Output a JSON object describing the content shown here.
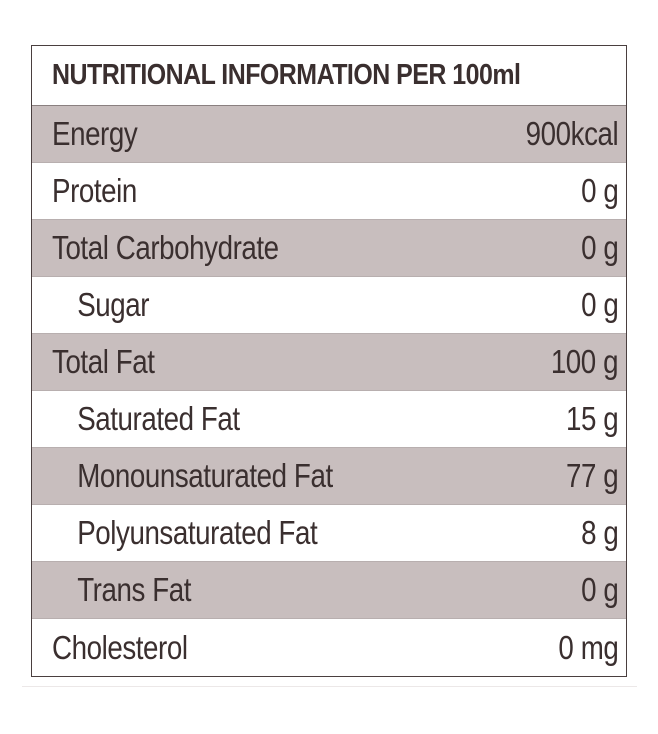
{
  "table": {
    "title": "NUTRITIONAL INFORMATION PER 100ml",
    "rows": [
      {
        "label": "Energy",
        "value": "900kcal"
      },
      {
        "label": "Protein",
        "value": "0 g"
      },
      {
        "label": "Total Carbohydrate",
        "value": "0 g"
      },
      {
        "label": "Sugar",
        "value": "0 g"
      },
      {
        "label": "Total Fat",
        "value": "100 g"
      },
      {
        "label": "Saturated Fat",
        "value": "15 g"
      },
      {
        "label": "Monounsaturated Fat",
        "value": "77 g"
      },
      {
        "label": "Polyunsaturated Fat",
        "value": "8 g"
      },
      {
        "label": "Trans Fat",
        "value": "0 g"
      },
      {
        "label": "Cholesterol",
        "value": "0 mg"
      }
    ],
    "colors": {
      "shade": "#c8bebe",
      "text": "#3a2f2f",
      "border": "#4a3f3f"
    }
  }
}
